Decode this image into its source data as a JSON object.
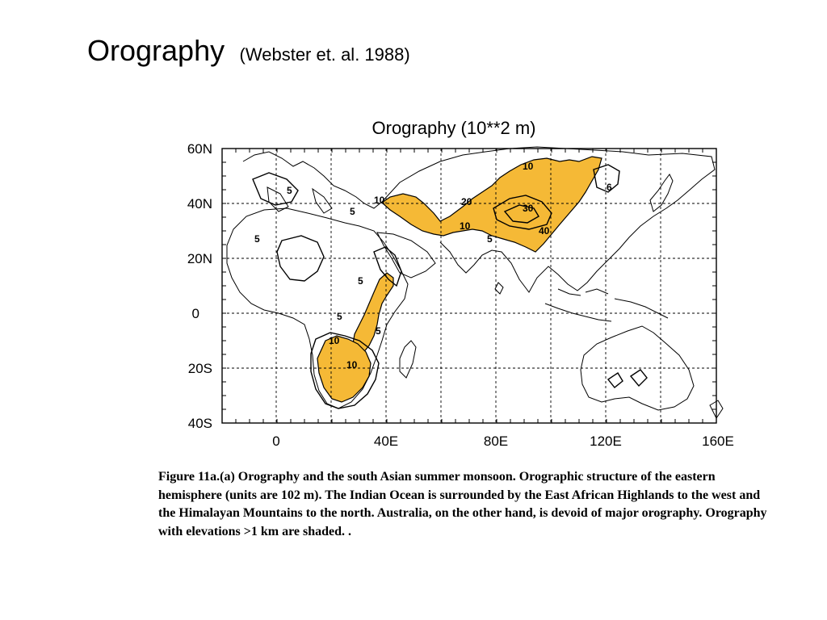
{
  "slide": {
    "title": "Orography",
    "subtitle": "(Webster et. al. 1988)"
  },
  "figure": {
    "title": "Orography (10**2 m)",
    "lat_labels": [
      "60N",
      "40N",
      "20N",
      "0",
      "20S",
      "40S"
    ],
    "lon_labels": [
      "0",
      "40E",
      "80E",
      "120E",
      "160E"
    ],
    "contour_labels": [
      {
        "text": "10",
        "region": "tibet-north"
      },
      {
        "text": "6",
        "region": "mongolia"
      },
      {
        "text": "20",
        "region": "tibet-west"
      },
      {
        "text": "30",
        "region": "tibet-center"
      },
      {
        "text": "10",
        "region": "tibet-south"
      },
      {
        "text": "5",
        "region": "himalaya-south"
      },
      {
        "text": "40",
        "region": "tibet-east"
      },
      {
        "text": "10",
        "region": "turkey-iran"
      },
      {
        "text": "5",
        "region": "europe-alps"
      },
      {
        "text": "5",
        "region": "balkans"
      },
      {
        "text": "5",
        "region": "atlas"
      },
      {
        "text": "5",
        "region": "ethiopia"
      },
      {
        "text": "5",
        "region": "central-africa"
      },
      {
        "text": "5",
        "region": "east-africa"
      },
      {
        "text": "10",
        "region": "angola"
      },
      {
        "text": "10",
        "region": "southern-africa"
      }
    ],
    "shaded_fill": "#f5b936",
    "shading_threshold": ">1 km"
  },
  "caption": "Figure 11a.(a) Orography and the south Asian summer monsoon. Orographic structure of the eastern hemisphere (units are 102 m). The Indian Ocean is surrounded by the East African Highlands to the west and the Himalayan Mountains to the north. Australia, on the other hand, is devoid of major orography. Orography with elevations >1 km are shaded. ."
}
